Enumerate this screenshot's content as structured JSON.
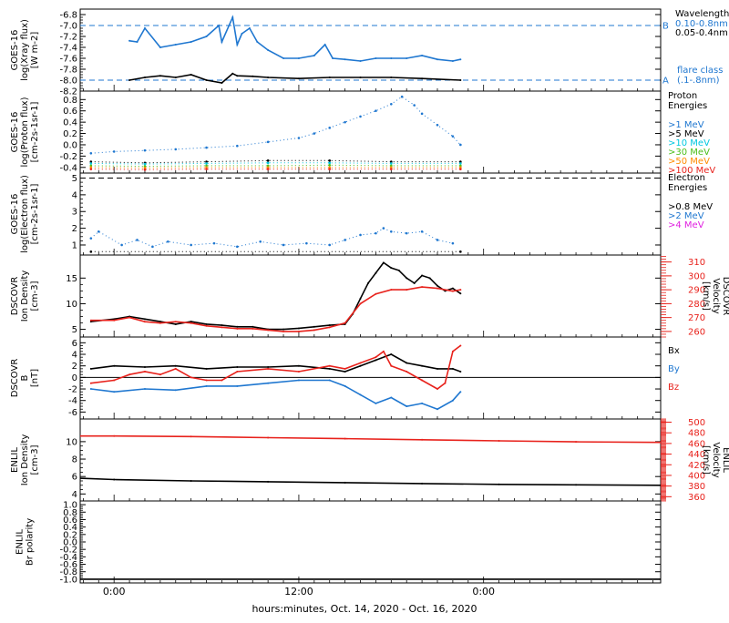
{
  "x_axis": {
    "label": "hours:minutes, Oct. 14, 2020 - Oct. 16, 2020",
    "ticks": [
      {
        "hour": 0,
        "label": "0:00"
      },
      {
        "hour": 12,
        "label": "12:00"
      },
      {
        "hour": 24,
        "label": "0:00"
      }
    ],
    "range_hours": [
      -2.2,
      35.5
    ]
  },
  "colors": {
    "black": "#000000",
    "blue": "#1f77d0",
    "red": "#e8221c",
    "cyan": "#00c8e0",
    "green": "#4cbf1c",
    "orange": "#ff8c00",
    "magenta": "#e020e0"
  },
  "chart_data": [
    {
      "id": "xray",
      "type": "line",
      "ylabel_lines": [
        "GOES-16",
        "log(Xray flux)",
        "[W m-2]"
      ],
      "ylim": [
        -8.2,
        -6.7
      ],
      "yticks": [
        -6.8,
        -7.0,
        -7.2,
        -7.4,
        -7.6,
        -7.8,
        -8.0,
        -8.2
      ],
      "ytick_labels": [
        "-6.8",
        "-7.0",
        "-7.2",
        "-7.4",
        "-7.6",
        "-7.8",
        "-8.0",
        "-8.2"
      ],
      "reference_lines": [
        {
          "y": -7.0,
          "label": "B"
        },
        {
          "y": -8.0,
          "label": "A"
        }
      ],
      "legend": {
        "title": "Wavelength",
        "items": [
          {
            "text": "0.10-0.8nm",
            "color": "blue"
          },
          {
            "text": "0.05-0.4nm",
            "color": "black"
          }
        ],
        "class_label": [
          "flare class",
          "(.1-.8nm)"
        ]
      },
      "series": [
        {
          "name": "0.10-0.8nm",
          "color": "blue",
          "x": [
            1.0,
            1.5,
            2.0,
            3.0,
            4.0,
            5.0,
            6.0,
            6.8,
            7.0,
            7.7,
            8.0,
            8.3,
            8.8,
            9.3,
            10.0,
            11.0,
            12.0,
            13.0,
            13.7,
            14.2,
            15.0,
            16.0,
            17.0,
            18.0,
            19.0,
            20.0,
            21.0,
            22.0,
            22.5
          ],
          "y": [
            -7.28,
            -7.3,
            -7.05,
            -7.4,
            -7.35,
            -7.3,
            -7.2,
            -7.0,
            -7.3,
            -6.85,
            -7.35,
            -7.15,
            -7.05,
            -7.3,
            -7.45,
            -7.6,
            -7.6,
            -7.55,
            -7.35,
            -7.6,
            -7.62,
            -7.65,
            -7.6,
            -7.6,
            -7.6,
            -7.55,
            -7.62,
            -7.65,
            -7.62
          ]
        },
        {
          "name": "0.05-0.4nm",
          "color": "black",
          "x": [
            1.0,
            2.0,
            3.0,
            4.0,
            5.0,
            6.0,
            7.0,
            7.7,
            8.0,
            9.0,
            10.0,
            12.0,
            14.0,
            16.0,
            18.0,
            20.0,
            22.5
          ],
          "y": [
            -8.0,
            -7.95,
            -7.92,
            -7.95,
            -7.9,
            -8.0,
            -8.05,
            -7.88,
            -7.92,
            -7.93,
            -7.95,
            -7.97,
            -7.95,
            -7.95,
            -7.95,
            -7.97,
            -8.0
          ]
        }
      ]
    },
    {
      "id": "proton",
      "type": "scatter",
      "ylabel_lines": [
        "GOES-16",
        "log(Proton flux)",
        "[cm-2s-1sr-1]"
      ],
      "ylim": [
        -0.5,
        0.95
      ],
      "yticks": [
        0.8,
        0.6,
        0.4,
        0.2,
        0.0,
        -0.2,
        -0.4
      ],
      "ytick_labels": [
        "0.8",
        "0.6",
        "0.4",
        "0.2",
        "0.0",
        "-0.2",
        "-0.4"
      ],
      "legend": {
        "title_lines": [
          "Proton",
          "Energies"
        ],
        "items": [
          {
            "text": ">1 MeV",
            "color": "blue"
          },
          {
            "text": ">5 MeV",
            "color": "black"
          },
          {
            "text": ">10 MeV",
            "color": "cyan"
          },
          {
            "text": ">30 MeV",
            "color": "green"
          },
          {
            "text": ">50 MeV",
            "color": "orange"
          },
          {
            "text": ">100 MeV",
            "color": "red"
          }
        ]
      },
      "series": [
        {
          "name": ">1 MeV",
          "color": "blue",
          "x": [
            -1.5,
            0,
            2,
            4,
            6,
            8,
            10,
            12,
            13,
            14,
            15,
            16,
            17,
            18,
            18.7,
            19.5,
            20,
            21,
            22,
            22.5
          ],
          "y": [
            -0.15,
            -0.12,
            -0.1,
            -0.08,
            -0.05,
            -0.02,
            0.05,
            0.12,
            0.2,
            0.3,
            0.4,
            0.5,
            0.6,
            0.72,
            0.85,
            0.7,
            0.55,
            0.35,
            0.15,
            0.0
          ]
        },
        {
          "name": ">5 MeV",
          "color": "black",
          "x": [
            -1.5,
            2,
            6,
            10,
            14,
            18,
            22.5
          ],
          "y": [
            -0.3,
            -0.32,
            -0.3,
            -0.28,
            -0.28,
            -0.3,
            -0.3
          ]
        },
        {
          "name": ">10 MeV",
          "color": "cyan",
          "x": [
            -1.5,
            2,
            6,
            10,
            14,
            18,
            22.5
          ],
          "y": [
            -0.33,
            -0.34,
            -0.33,
            -0.32,
            -0.32,
            -0.33,
            -0.33
          ]
        },
        {
          "name": ">30 MeV",
          "color": "green",
          "x": [
            -1.5,
            2,
            6,
            10,
            14,
            18,
            22.5
          ],
          "y": [
            -0.37,
            -0.38,
            -0.37,
            -0.37,
            -0.36,
            -0.37,
            -0.37
          ]
        },
        {
          "name": ">50 MeV",
          "color": "orange",
          "x": [
            -1.5,
            2,
            6,
            10,
            14,
            18,
            22.5
          ],
          "y": [
            -0.4,
            -0.41,
            -0.4,
            -0.4,
            -0.4,
            -0.4,
            -0.4
          ]
        },
        {
          "name": ">100 MeV",
          "color": "red",
          "x": [
            -1.5,
            2,
            6,
            10,
            14,
            18,
            22.5
          ],
          "y": [
            -0.43,
            -0.44,
            -0.43,
            -0.43,
            -0.43,
            -0.43,
            -0.43
          ]
        }
      ]
    },
    {
      "id": "electron",
      "type": "scatter",
      "ylabel_lines": [
        "GOES-16",
        "log(Electron flux)",
        "[cm-2s-1sr-1]"
      ],
      "ylim": [
        0.4,
        5.3
      ],
      "yticks": [
        5,
        4,
        3,
        2,
        1
      ],
      "ytick_labels": [
        "5",
        "4",
        "3",
        "2",
        "1"
      ],
      "reference_lines": [
        {
          "y": 5.0,
          "label": ""
        }
      ],
      "legend": {
        "title_lines": [
          "Electron",
          "Energies"
        ],
        "items": [
          {
            "text": ">0.8 MeV",
            "color": "black"
          },
          {
            "text": ">2 MeV",
            "color": "blue"
          },
          {
            "text": ">4 MeV",
            "color": "magenta"
          }
        ]
      },
      "series": [
        {
          "name": ">2 MeV",
          "color": "blue",
          "x": [
            -1.5,
            -1.0,
            0.5,
            1.5,
            2.5,
            3.5,
            5.0,
            6.5,
            8.0,
            9.5,
            11.0,
            12.5,
            14.0,
            15.0,
            16.0,
            17.0,
            17.5,
            18.0,
            19.0,
            20.0,
            21.0,
            22.0
          ],
          "y": [
            1.4,
            1.8,
            1.0,
            1.3,
            0.9,
            1.2,
            1.0,
            1.1,
            0.9,
            1.2,
            1.0,
            1.1,
            1.0,
            1.3,
            1.6,
            1.7,
            2.0,
            1.8,
            1.7,
            1.8,
            1.3,
            1.1
          ]
        },
        {
          "name": ">0.8 MeV",
          "color": "black",
          "x": [
            -1.5,
            22.5
          ],
          "y": [
            0.6,
            0.6
          ]
        }
      ]
    },
    {
      "id": "dscovr_density",
      "type": "line",
      "ylabel_lines": [
        "DSCOVR",
        "Ion Density",
        "[cm-3]"
      ],
      "ylim": [
        3.5,
        19.5
      ],
      "yticks": [
        15,
        10,
        5
      ],
      "ytick_labels": [
        "15",
        "10",
        "5"
      ],
      "right_ylabel_lines": [
        "DSCOVR",
        "Velocity",
        "[km/s]"
      ],
      "right_ylim": [
        256,
        315
      ],
      "right_yticks": [
        310,
        300,
        290,
        280,
        270,
        260
      ],
      "right_ytick_labels": [
        "310",
        "300",
        "290",
        "280",
        "270",
        "260"
      ],
      "series": [
        {
          "name": "density",
          "color": "black",
          "x": [
            -1.5,
            0,
            1,
            2,
            3,
            4,
            5,
            6,
            7,
            8,
            9,
            10,
            11,
            12,
            13,
            14,
            15,
            15.5,
            16,
            16.5,
            17,
            17.5,
            18,
            18.5,
            19,
            19.5,
            20,
            20.5,
            21,
            21.5,
            22,
            22.5
          ],
          "y": [
            6.5,
            7.0,
            7.5,
            7.0,
            6.5,
            6.0,
            6.5,
            6.0,
            5.8,
            5.5,
            5.5,
            5.0,
            5.0,
            5.2,
            5.5,
            5.8,
            6.0,
            8.0,
            11.0,
            14.0,
            16.0,
            18.0,
            17.0,
            16.5,
            15.0,
            14.0,
            15.5,
            15.0,
            13.5,
            12.5,
            13.0,
            12.0
          ]
        },
        {
          "name": "velocity",
          "color": "red",
          "axis": "right",
          "x": [
            -1.5,
            0,
            1,
            2,
            3,
            4,
            5,
            6,
            7,
            8,
            9,
            10,
            11,
            12,
            13,
            14,
            15,
            16,
            17,
            18,
            19,
            20,
            21,
            22,
            22.5
          ],
          "y": [
            268,
            268,
            270,
            267,
            266,
            267,
            266,
            264,
            263,
            262,
            262,
            261,
            260,
            260,
            261,
            263,
            266,
            280,
            287,
            290,
            290,
            292,
            291,
            289,
            290
          ]
        }
      ]
    },
    {
      "id": "dscovr_b",
      "type": "line",
      "ylabel_lines": [
        "DSCOVR",
        "B",
        "[nT]"
      ],
      "ylim": [
        -7.2,
        7.0
      ],
      "yticks": [
        6,
        4,
        2,
        0,
        -2,
        -4,
        -6
      ],
      "ytick_labels": [
        "6",
        "4",
        "2",
        "0",
        "-2",
        "-4",
        "-6"
      ],
      "zero_line": true,
      "legend": {
        "items": [
          {
            "text": "Bx",
            "color": "black"
          },
          {
            "text": "By",
            "color": "blue"
          },
          {
            "text": "Bz",
            "color": "red"
          }
        ]
      },
      "series": [
        {
          "name": "Bx",
          "color": "black",
          "x": [
            -1.5,
            0,
            2,
            4,
            6,
            8,
            10,
            12,
            14,
            15,
            16,
            17,
            18,
            19,
            20,
            21,
            22,
            22.5
          ],
          "y": [
            1.5,
            2.0,
            1.8,
            2.0,
            1.5,
            1.8,
            1.8,
            2.0,
            1.5,
            1.0,
            2.0,
            3.0,
            4.0,
            2.5,
            2.0,
            1.5,
            1.5,
            1.0
          ]
        },
        {
          "name": "By",
          "color": "blue",
          "x": [
            -1.5,
            0,
            2,
            4,
            6,
            8,
            10,
            12,
            14,
            15,
            16,
            17,
            18,
            19,
            20,
            21,
            22,
            22.5
          ],
          "y": [
            -2.0,
            -2.5,
            -2.0,
            -2.2,
            -1.5,
            -1.5,
            -1.0,
            -0.5,
            -0.5,
            -1.5,
            -3.0,
            -4.5,
            -3.5,
            -5.0,
            -4.5,
            -5.5,
            -4.0,
            -2.5
          ]
        },
        {
          "name": "Bz",
          "color": "red",
          "x": [
            -1.5,
            0,
            1,
            2,
            3,
            4,
            5,
            6,
            7,
            8,
            10,
            12,
            14,
            15,
            16,
            17,
            17.5,
            18,
            19,
            20,
            21,
            21.5,
            22,
            22.5
          ],
          "y": [
            -1.0,
            -0.5,
            0.5,
            1.0,
            0.5,
            1.5,
            0.0,
            -0.5,
            -0.5,
            1.0,
            1.5,
            1.0,
            2.0,
            1.5,
            2.5,
            3.5,
            4.5,
            2.0,
            1.0,
            -0.5,
            -2.0,
            -1.0,
            4.5,
            5.5
          ]
        }
      ]
    },
    {
      "id": "enlil_density",
      "type": "line",
      "ylabel_lines": [
        "ENLIL",
        "Ion Density",
        "[cm-3]"
      ],
      "ylim": [
        3.2,
        12.6
      ],
      "yticks": [
        10,
        8,
        6,
        4
      ],
      "ytick_labels": [
        "10",
        "8",
        "6",
        "4"
      ],
      "right_ylabel_lines": [
        "ENLIL",
        "Velocity",
        "[km/s]"
      ],
      "right_ylim": [
        352,
        506
      ],
      "right_yticks": [
        500,
        480,
        460,
        440,
        420,
        400,
        380,
        360
      ],
      "right_ytick_labels": [
        "500",
        "480",
        "460",
        "440",
        "420",
        "400",
        "380",
        "360"
      ],
      "series": [
        {
          "name": "density",
          "color": "black",
          "x": [
            -2.2,
            0,
            5,
            10,
            15,
            20,
            25,
            30,
            35.5
          ],
          "y": [
            5.8,
            5.65,
            5.5,
            5.4,
            5.3,
            5.2,
            5.1,
            5.05,
            5.0
          ]
        },
        {
          "name": "velocity",
          "color": "red",
          "axis": "right",
          "x": [
            -2.2,
            0,
            5,
            10,
            15,
            20,
            25,
            30,
            35.5
          ],
          "y": [
            474,
            474,
            473,
            471,
            469,
            467,
            465,
            463,
            462
          ]
        }
      ]
    },
    {
      "id": "enlil_polarity",
      "type": "line",
      "ylabel_lines": [
        "ENLIL",
        "Br polarity"
      ],
      "ylim": [
        -1.1,
        1.1
      ],
      "yticks": [
        1.0,
        0.8,
        0.6,
        0.4,
        0.2,
        0.0,
        -0.2,
        -0.4,
        -0.6,
        -0.8,
        -1.0
      ],
      "ytick_labels": [
        "1.0",
        "0.8",
        "0.6",
        "0.4",
        "0.2",
        "0.0",
        "-0.2",
        "-0.4",
        "-0.6",
        "-0.8",
        "-1.0"
      ],
      "series": [
        {
          "name": "polarity",
          "color": "black",
          "x": [
            -2.2,
            35.5
          ],
          "y": [
            -1.0,
            -1.0
          ]
        }
      ]
    }
  ]
}
